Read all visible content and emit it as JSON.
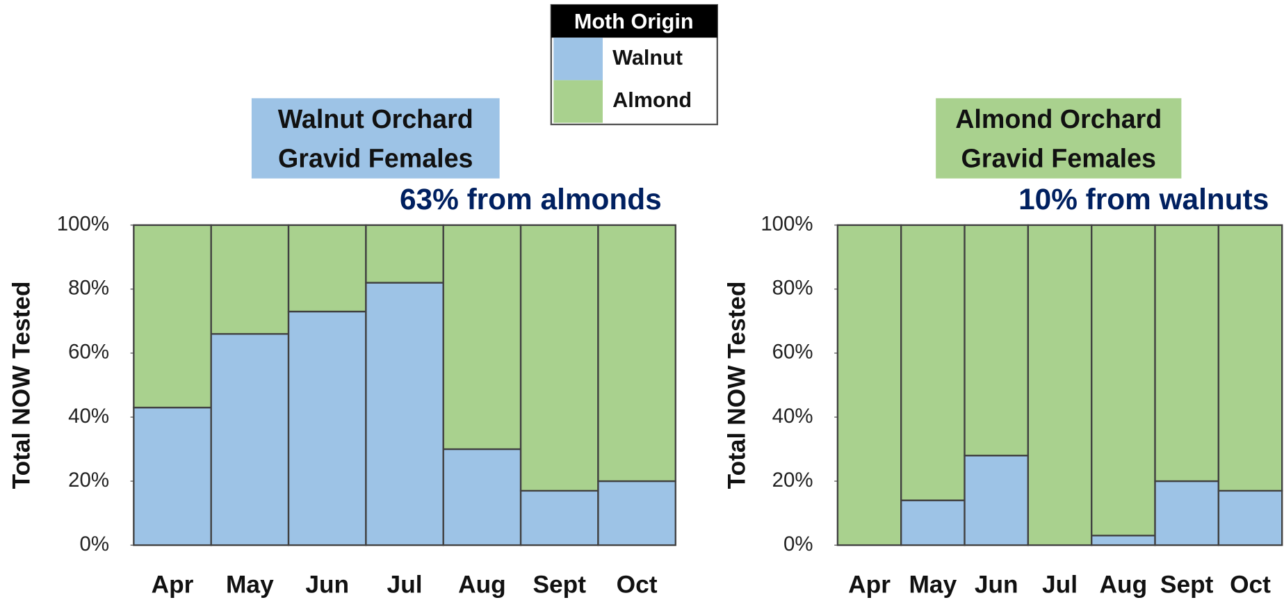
{
  "legend": {
    "title": "Moth Origin"
  },
  "chart_data": [
    {
      "type": "stacked_bar",
      "title": [
        "Walnut Orchard",
        "Gravid Females"
      ],
      "subtitle": "63% from almonds",
      "title_color": "#9dc3e6",
      "ylabel": "Total NOW Tested",
      "categories": [
        "Apr",
        "May",
        "Jun",
        "Jul",
        "Aug",
        "Sept",
        "Oct"
      ],
      "series": [
        {
          "name": "Walnut",
          "color": "#9dc3e6",
          "values": [
            43,
            66,
            73,
            82,
            30,
            17,
            20
          ]
        },
        {
          "name": "Almond",
          "color": "#a9d18e",
          "values": [
            57,
            34,
            27,
            18,
            70,
            83,
            80
          ]
        }
      ],
      "ylim": [
        0,
        100
      ],
      "yticks": [
        {
          "value": 0,
          "label": "0%"
        },
        {
          "value": 20,
          "label": "20%"
        },
        {
          "value": 40,
          "label": "40%"
        },
        {
          "value": 60,
          "label": "60%"
        },
        {
          "value": 80,
          "label": "80%"
        },
        {
          "value": 100,
          "label": "100%"
        }
      ]
    },
    {
      "type": "stacked_bar",
      "title": [
        "Almond Orchard",
        "Gravid Females"
      ],
      "subtitle": "10% from walnuts",
      "title_color": "#a9d18e",
      "ylabel": "Total NOW Tested",
      "categories": [
        "Apr",
        "May",
        "Jun",
        "Jul",
        "Aug",
        "Sept",
        "Oct"
      ],
      "series": [
        {
          "name": "Walnut",
          "color": "#9dc3e6",
          "values": [
            0,
            14,
            28,
            0,
            3,
            20,
            17
          ]
        },
        {
          "name": "Almond",
          "color": "#a9d18e",
          "values": [
            100,
            86,
            72,
            100,
            97,
            80,
            83
          ]
        }
      ],
      "ylim": [
        0,
        100
      ],
      "yticks": [
        {
          "value": 0,
          "label": "0%"
        },
        {
          "value": 20,
          "label": "20%"
        },
        {
          "value": 40,
          "label": "40%"
        },
        {
          "value": 60,
          "label": "60%"
        },
        {
          "value": 80,
          "label": "80%"
        },
        {
          "value": 100,
          "label": "100%"
        }
      ]
    }
  ]
}
